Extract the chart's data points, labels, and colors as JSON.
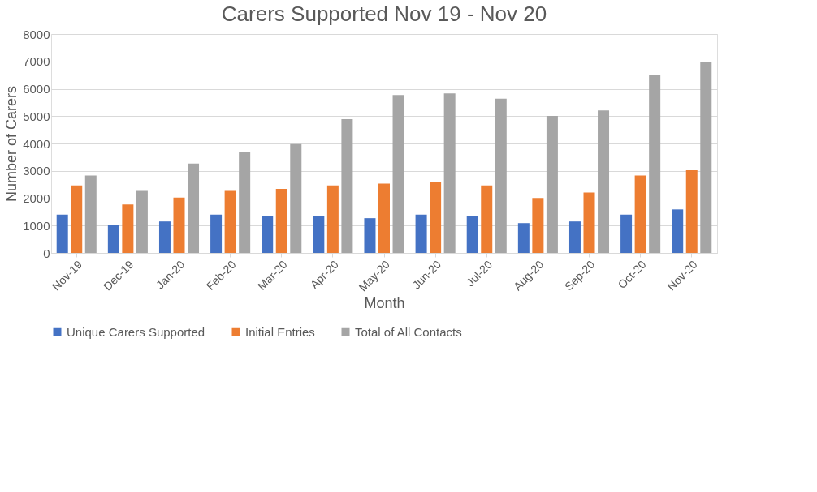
{
  "chart_data": {
    "type": "bar",
    "title": "Carers Supported Nov 19 - Nov 20",
    "xlabel": "Month",
    "ylabel": "Number  of Carers",
    "categories": [
      "Nov-19",
      "Dec-19",
      "Jan-20",
      "Feb-20",
      "Mar-20",
      "Apr-20",
      "May-20",
      "Jun-20",
      "Jul-20",
      "Aug-20",
      "Sep-20",
      "Oct-20",
      "Nov-20"
    ],
    "series": [
      {
        "name": "Unique Carers Supported",
        "color": "#4472c4",
        "values": [
          1400,
          1030,
          1150,
          1400,
          1340,
          1340,
          1270,
          1400,
          1340,
          1090,
          1150,
          1400,
          1590
        ]
      },
      {
        "name": "Initial Entries",
        "color": "#ed7d31",
        "values": [
          2470,
          1770,
          2020,
          2270,
          2340,
          2470,
          2530,
          2590,
          2470,
          2010,
          2210,
          2830,
          3020
        ]
      },
      {
        "name": "Total of All Contacts",
        "color": "#a5a5a5",
        "values": [
          2830,
          2270,
          3270,
          3700,
          3980,
          4890,
          5770,
          5830,
          5640,
          5010,
          5210,
          6520,
          6960
        ]
      }
    ],
    "ylim": [
      0,
      8000
    ],
    "yticks": [
      0,
      1000,
      2000,
      3000,
      4000,
      5000,
      6000,
      7000,
      8000
    ],
    "grid": "y",
    "legend": "bottom"
  }
}
